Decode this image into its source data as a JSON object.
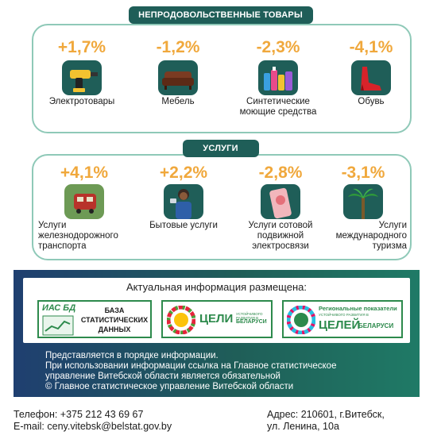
{
  "nonfood": {
    "title": "НЕПРОДОВОЛЬСТВЕННЫЕ ТОВАРЫ",
    "items": [
      {
        "value": "+1,7%",
        "label": "Электротовары",
        "icon": "drill-icon"
      },
      {
        "value": "-1,2%",
        "label": "Мебель",
        "icon": "sofa-icon"
      },
      {
        "value": "-2,3%",
        "label": "Синтетические моющие средства",
        "icon": "detergent-icon"
      },
      {
        "value": "-4,1%",
        "label": "Обувь",
        "icon": "shoe-icon"
      }
    ]
  },
  "services": {
    "title": "УСЛУГИ",
    "items": [
      {
        "value": "+4,1%",
        "label": "Услуги железнодорожного транспорта",
        "icon": "train-icon"
      },
      {
        "value": "+2,2%",
        "label": "Бытовые услуги",
        "icon": "worker-icon"
      },
      {
        "value": "-2,8%",
        "label": "Услуги сотовой подвижной электросвязи",
        "icon": "phone-icon"
      },
      {
        "value": "-3,1%",
        "label": "Услуги международного туризма",
        "icon": "palm-icon"
      }
    ]
  },
  "info": {
    "heading": "Актуальная информация размещена:",
    "logos": [
      {
        "tag": "ИАС БД",
        "text": "БАЗА СТАТИСТИЧЕСКИХ ДАННЫХ"
      },
      {
        "big": "ЦЕЛИ",
        "small": "УСТОЙЧИВОГО РАЗВИТИЯ В",
        "country": "БЕЛАРУСИ"
      },
      {
        "top": "Региональные показатели",
        "small": "УСТОЙЧИВОГО РАЗВИТИЯ В",
        "big": "ЦЕЛЕЙ",
        "country": "БЕЛАРУСИ"
      }
    ],
    "note_lines": [
      "Представляется в порядке информации.",
      "При использовании информации ссылка на Главное статистическое",
      "управление Витебской области является обязательной",
      "© Главное статистическое управление Витебской области"
    ]
  },
  "contacts": {
    "phone": "Телефон: +375 212 43 69 67",
    "email": "E-mail: ceny.vitebsk@belstat.gov.by",
    "address_line1": "Адрес: 210601, г.Витебск,",
    "address_line2": "ул. Ленина, 10а"
  },
  "colors": {
    "accent": "#f0a83c",
    "primary": "#1f5e58",
    "border": "#8fc9b8"
  }
}
